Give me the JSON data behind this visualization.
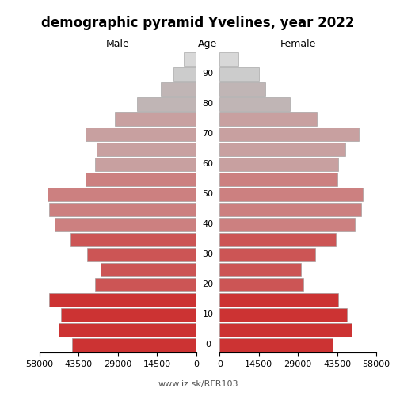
{
  "title": "demographic pyramid Yvelines, year 2022",
  "xlabel_left": "Male",
  "xlabel_right": "Female",
  "xlabel_center": "Age",
  "url": "www.iz.sk/RFR103",
  "male": [
    46000,
    51000,
    50000,
    54500,
    37500,
    35500,
    40500,
    46500,
    52500,
    54500,
    55000,
    41000,
    37500,
    37000,
    41000,
    30000,
    22000,
    13000,
    8500,
    4500
  ],
  "female": [
    42000,
    49000,
    47000,
    44000,
    31000,
    30000,
    35500,
    43000,
    50000,
    52500,
    53000,
    43500,
    44000,
    46500,
    51500,
    36000,
    26000,
    17000,
    14500,
    7000
  ],
  "age_group_names": [
    "0",
    "",
    "10",
    "",
    "20",
    "",
    "30",
    "",
    "40",
    "",
    "50",
    "",
    "60",
    "",
    "70",
    "",
    "80",
    "",
    "90",
    ""
  ],
  "xlim": 58000,
  "xticks_left": [
    58000,
    43500,
    29000,
    14500,
    0
  ],
  "xticks_right": [
    0,
    14500,
    29000,
    43500,
    58000
  ],
  "xticklabels": [
    "58000",
    "43500",
    "29000",
    "14500",
    "0"
  ],
  "bar_colors": [
    "#cc3333",
    "#cc3333",
    "#cc3333",
    "#cc3333",
    "#cc5555",
    "#cc5555",
    "#cc5555",
    "#cc5555",
    "#cc8080",
    "#cc8080",
    "#cc8080",
    "#cc8080",
    "#c8a0a0",
    "#c8a0a0",
    "#c8a0a0",
    "#c8a0a0",
    "#c0b5b5",
    "#c0b5b5",
    "#cccccc",
    "#d8d8d8"
  ],
  "background_color": "#ffffff",
  "title_fontsize": 12,
  "label_fontsize": 9,
  "tick_fontsize": 8,
  "url_fontsize": 8
}
